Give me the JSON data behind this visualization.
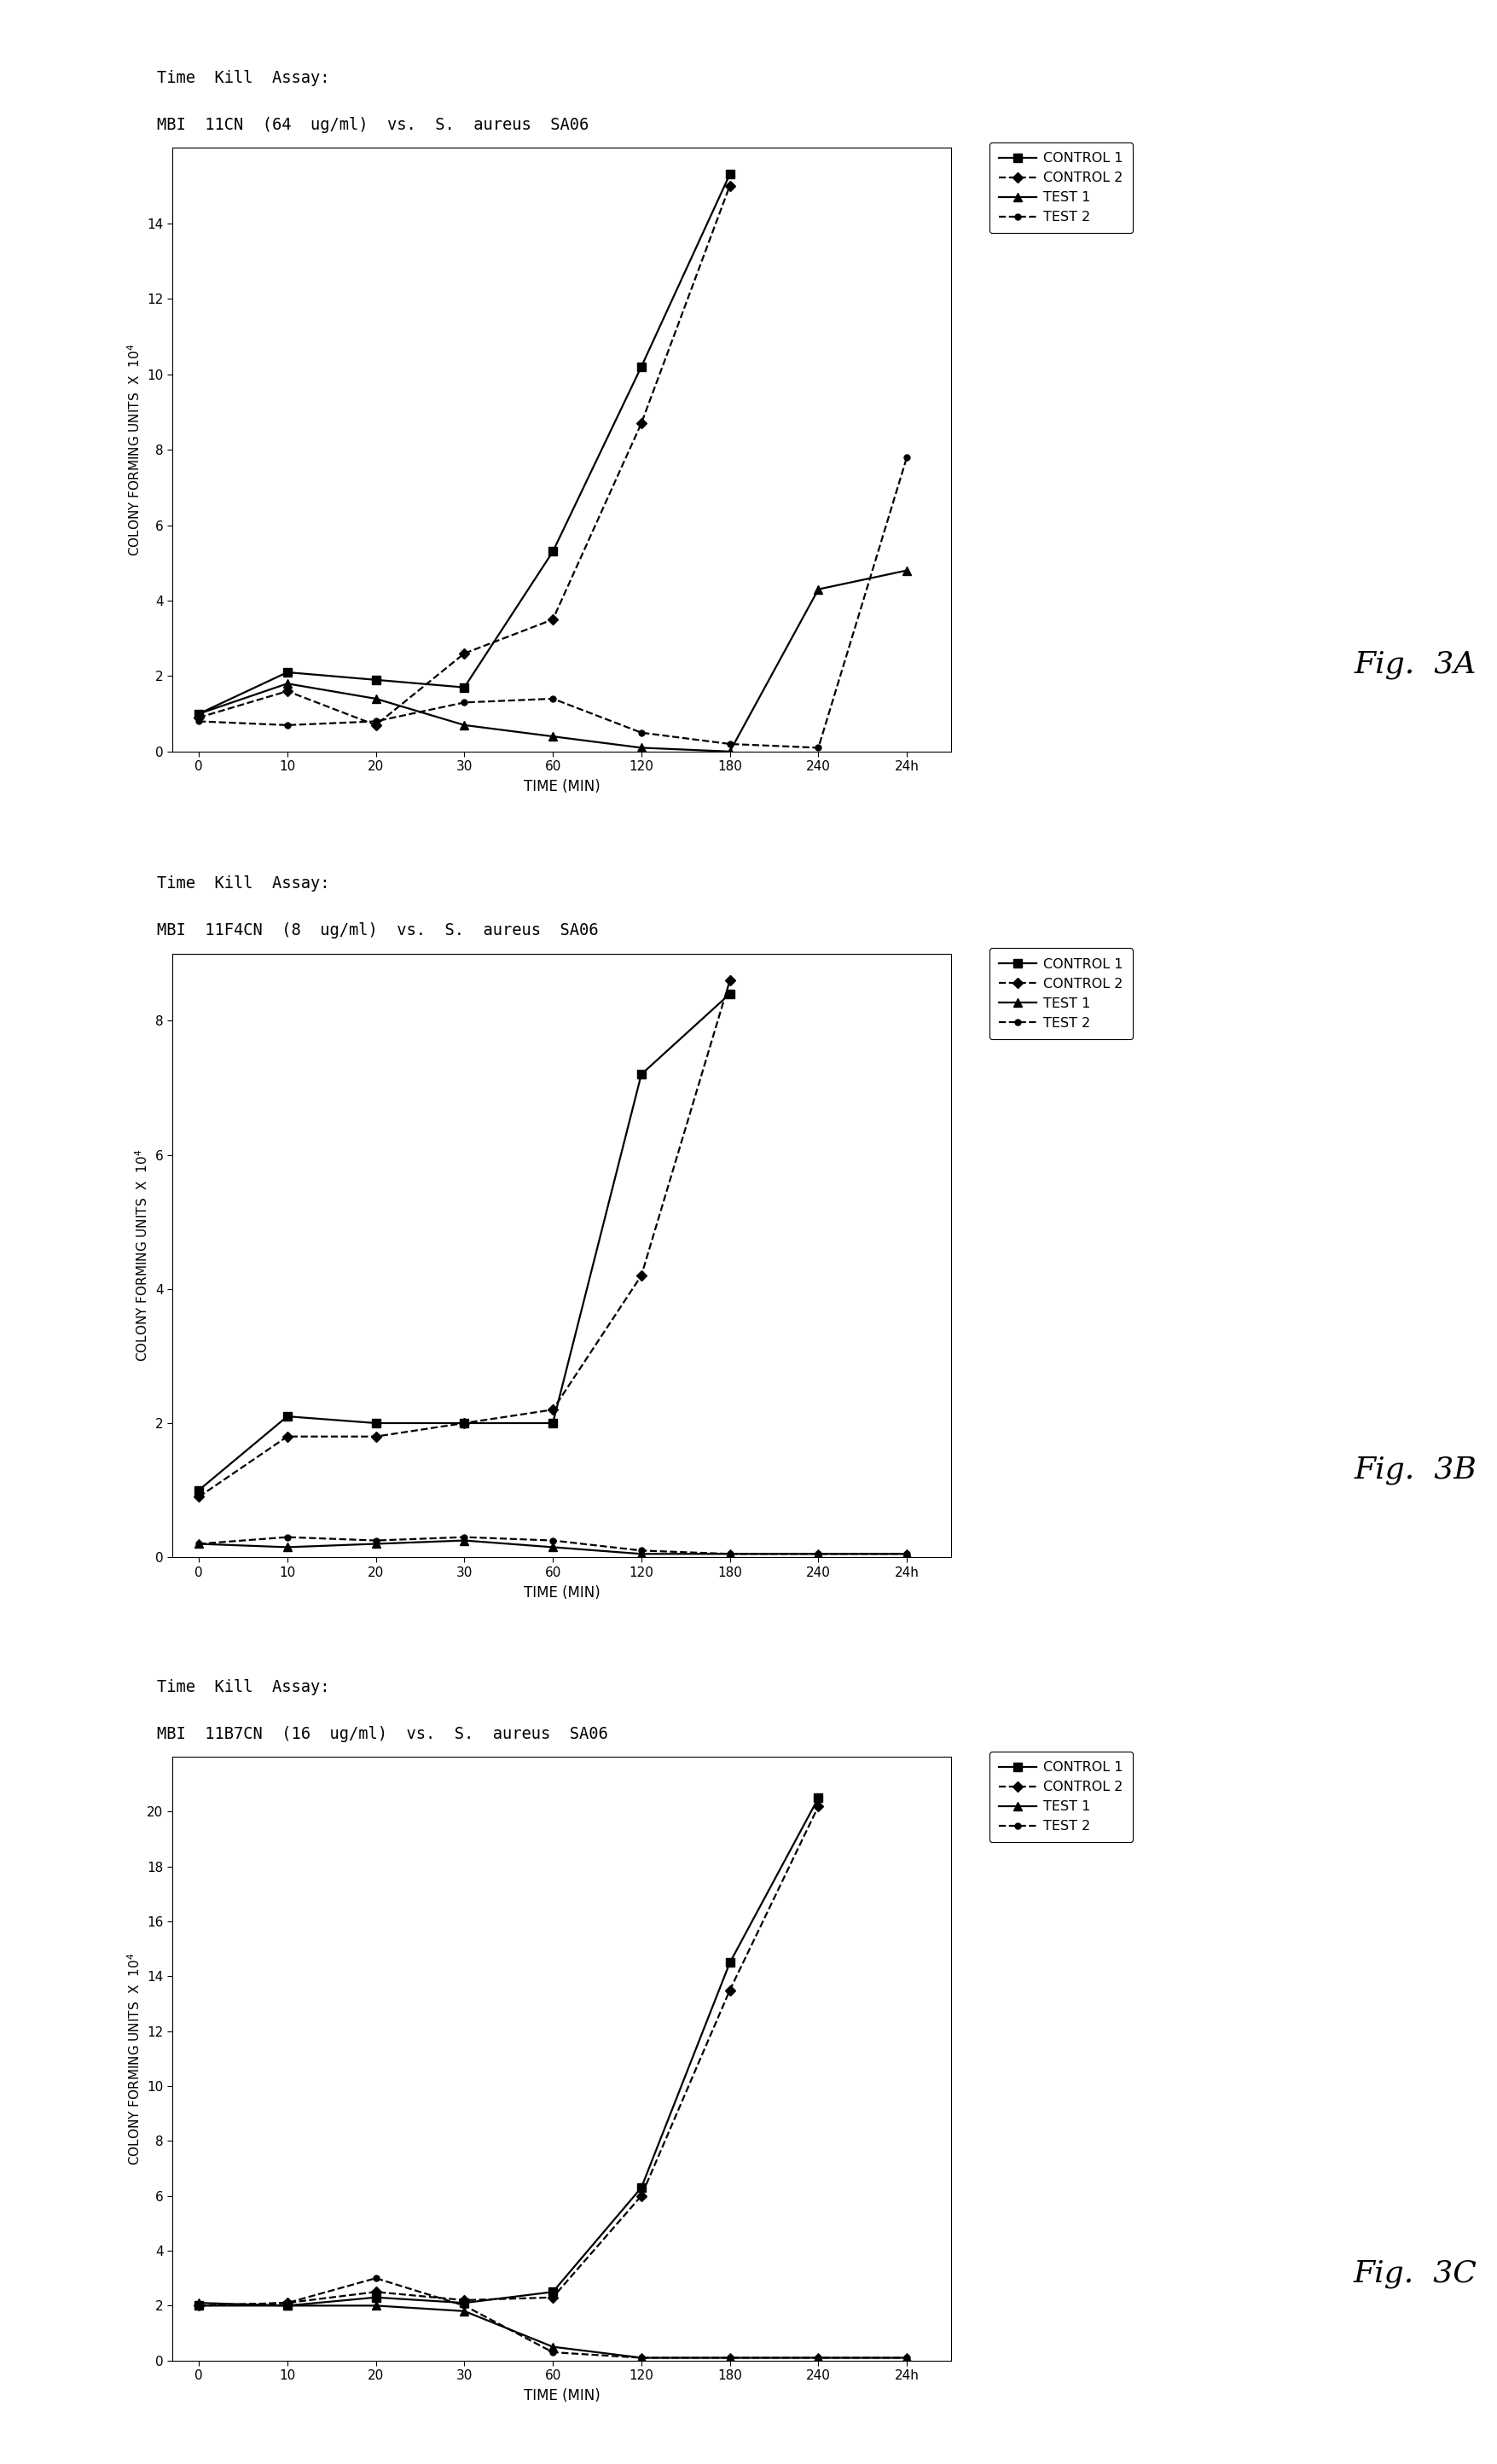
{
  "charts": [
    {
      "title_line1": "Time  Kill  Assay:",
      "title_line2": "MBI  11CN  (64  ug/ml)  vs.  S.  aureus  SA06",
      "fig_label": "Fig.  3A",
      "ylim": [
        0,
        16
      ],
      "yticks": [
        0,
        2,
        4,
        6,
        8,
        10,
        12,
        14
      ],
      "xtick_labels": [
        "0",
        "10",
        "20",
        "30",
        "60",
        "120",
        "180",
        "240",
        "24h"
      ],
      "x_positions": [
        0,
        1,
        2,
        3,
        4,
        5,
        6,
        7,
        8
      ],
      "series": [
        {
          "name": "CONTROL 1",
          "linestyle": "-",
          "marker": "s",
          "y": [
            1.0,
            2.1,
            1.9,
            1.7,
            5.3,
            10.2,
            15.3,
            null,
            null
          ]
        },
        {
          "name": "CONTROL 2",
          "linestyle": "--",
          "marker": "D",
          "y": [
            0.9,
            1.6,
            0.7,
            2.6,
            3.5,
            8.7,
            15.0,
            null,
            null
          ]
        },
        {
          "name": "TEST 1",
          "linestyle": "-",
          "marker": "^",
          "y": [
            1.0,
            1.8,
            1.4,
            0.7,
            0.4,
            0.1,
            0.0,
            4.3,
            4.8
          ]
        },
        {
          "name": "TEST 2",
          "linestyle": "--",
          "marker": "o",
          "y": [
            0.8,
            0.7,
            0.8,
            1.3,
            1.4,
            0.5,
            0.2,
            0.1,
            7.8
          ]
        }
      ]
    },
    {
      "title_line1": "Time  Kill  Assay:",
      "title_line2": "MBI  11F4CN  (8  ug/ml)  vs.  S.  aureus  SA06",
      "fig_label": "Fig.  3B",
      "ylim": [
        0,
        9
      ],
      "yticks": [
        0,
        2,
        4,
        6,
        8
      ],
      "xtick_labels": [
        "0",
        "10",
        "20",
        "30",
        "60",
        "120",
        "180",
        "240",
        "24h"
      ],
      "x_positions": [
        0,
        1,
        2,
        3,
        4,
        5,
        6,
        7,
        8
      ],
      "series": [
        {
          "name": "CONTROL 1",
          "linestyle": "-",
          "marker": "s",
          "y": [
            1.0,
            2.1,
            2.0,
            2.0,
            2.0,
            7.2,
            8.4,
            null,
            null
          ]
        },
        {
          "name": "CONTROL 2",
          "linestyle": "--",
          "marker": "D",
          "y": [
            0.9,
            1.8,
            1.8,
            2.0,
            2.2,
            4.2,
            8.6,
            null,
            null
          ]
        },
        {
          "name": "TEST 1",
          "linestyle": "-",
          "marker": "^",
          "y": [
            0.2,
            0.15,
            0.2,
            0.25,
            0.15,
            0.05,
            0.05,
            0.05,
            0.05
          ]
        },
        {
          "name": "TEST 2",
          "linestyle": "--",
          "marker": "o",
          "y": [
            0.2,
            0.3,
            0.25,
            0.3,
            0.25,
            0.1,
            0.05,
            0.05,
            0.05
          ]
        }
      ]
    },
    {
      "title_line1": "Time  Kill  Assay:",
      "title_line2": "MBI  11B7CN  (16  ug/ml)  vs.  S.  aureus  SA06",
      "fig_label": "Fig.  3C",
      "ylim": [
        0,
        22
      ],
      "yticks": [
        0,
        2,
        4,
        6,
        8,
        10,
        12,
        14,
        16,
        18,
        20
      ],
      "xtick_labels": [
        "0",
        "10",
        "20",
        "30",
        "60",
        "120",
        "180",
        "240",
        "24h"
      ],
      "x_positions": [
        0,
        1,
        2,
        3,
        4,
        5,
        6,
        7,
        8
      ],
      "series": [
        {
          "name": "CONTROL 1",
          "linestyle": "-",
          "marker": "s",
          "y": [
            2.0,
            2.0,
            2.3,
            2.1,
            2.5,
            6.3,
            14.5,
            20.5,
            null
          ]
        },
        {
          "name": "CONTROL 2",
          "linestyle": "--",
          "marker": "D",
          "y": [
            2.0,
            2.1,
            2.5,
            2.2,
            2.3,
            6.0,
            13.5,
            20.2,
            null
          ]
        },
        {
          "name": "TEST 1",
          "linestyle": "-",
          "marker": "^",
          "y": [
            2.1,
            2.0,
            2.0,
            1.8,
            0.5,
            0.1,
            0.1,
            0.1,
            0.1
          ]
        },
        {
          "name": "TEST 2",
          "linestyle": "--",
          "marker": "o",
          "y": [
            2.0,
            2.1,
            3.0,
            2.0,
            0.3,
            0.1,
            0.1,
            0.1,
            0.1
          ]
        }
      ]
    }
  ],
  "line_color": "#000000",
  "background_color": "#ffffff",
  "ylabel": "COLONY FORMING UNITS  X  10",
  "ylabel_sup": "4",
  "xlabel": "TIME (MIN)",
  "legend_entries": [
    "CONTROL 1",
    "CONTROL 2",
    "TEST 1",
    "TEST 2"
  ],
  "title_fontsize": 13.5,
  "label_fontsize": 11,
  "tick_fontsize": 11,
  "legend_fontsize": 11.5,
  "fig_label_fontsize": 26
}
